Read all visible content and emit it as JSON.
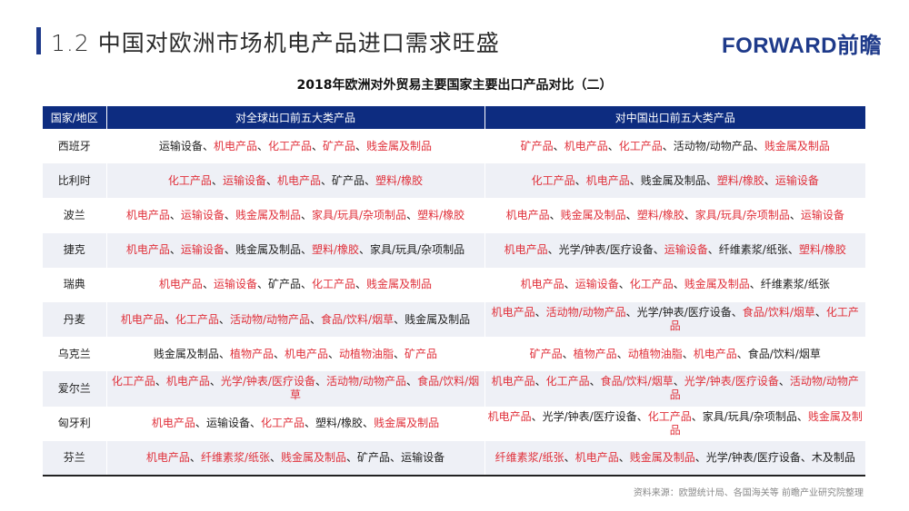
{
  "header": {
    "title": "1.2 中国对欧洲市场机电产品进口需求旺盛",
    "logo": "FORWARD前瞻"
  },
  "table": {
    "title": "2018年欧洲对外贸易主要国家主要出口产品对比（二）",
    "columns": [
      "国家/地区",
      "对全球出口前五大类产品",
      "对中国出口前五大类产品"
    ],
    "separator": "、",
    "highlight_color": "#e0303a",
    "header_color": "#0d2c80",
    "rows": [
      {
        "country": "西班牙",
        "global": [
          {
            "t": "运输设备",
            "r": false
          },
          {
            "t": "机电产品",
            "r": true
          },
          {
            "t": "化工产品",
            "r": true
          },
          {
            "t": "矿产品",
            "r": true
          },
          {
            "t": "贱金属及制品",
            "r": true
          }
        ],
        "china": [
          {
            "t": "矿产品",
            "r": true
          },
          {
            "t": "机电产品",
            "r": true
          },
          {
            "t": "化工产品",
            "r": true
          },
          {
            "t": "活动物/动物产品",
            "r": false
          },
          {
            "t": "贱金属及制品",
            "r": true
          }
        ]
      },
      {
        "country": "比利时",
        "global": [
          {
            "t": "化工产品",
            "r": true
          },
          {
            "t": "运输设备",
            "r": true
          },
          {
            "t": "机电产品",
            "r": true
          },
          {
            "t": "矿产品",
            "r": false
          },
          {
            "t": "塑料/橡胶",
            "r": true
          }
        ],
        "china": [
          {
            "t": "化工产品",
            "r": true
          },
          {
            "t": "机电产品",
            "r": true
          },
          {
            "t": "贱金属及制品",
            "r": false
          },
          {
            "t": "塑料/橡胶",
            "r": true
          },
          {
            "t": "运输设备",
            "r": true
          }
        ]
      },
      {
        "country": "波兰",
        "global": [
          {
            "t": "机电产品",
            "r": true
          },
          {
            "t": "运输设备",
            "r": true
          },
          {
            "t": "贱金属及制品",
            "r": true
          },
          {
            "t": "家具/玩具/杂项制品",
            "r": true
          },
          {
            "t": "塑料/橡胶",
            "r": true
          }
        ],
        "china": [
          {
            "t": "机电产品",
            "r": true
          },
          {
            "t": "贱金属及制品",
            "r": true
          },
          {
            "t": "塑料/橡胶",
            "r": true
          },
          {
            "t": "家具/玩具/杂项制品",
            "r": true
          },
          {
            "t": "运输设备",
            "r": true
          }
        ]
      },
      {
        "country": "捷克",
        "global": [
          {
            "t": "机电产品",
            "r": true
          },
          {
            "t": "运输设备",
            "r": true
          },
          {
            "t": "贱金属及制品",
            "r": false
          },
          {
            "t": "塑料/橡胶",
            "r": true
          },
          {
            "t": "家具/玩具/杂项制品",
            "r": false
          }
        ],
        "china": [
          {
            "t": "机电产品",
            "r": true
          },
          {
            "t": "光学/钟表/医疗设备",
            "r": false
          },
          {
            "t": "运输设备",
            "r": true
          },
          {
            "t": "纤维素浆/纸张",
            "r": false
          },
          {
            "t": "塑料/橡胶",
            "r": true
          }
        ]
      },
      {
        "country": "瑞典",
        "global": [
          {
            "t": "机电产品",
            "r": true
          },
          {
            "t": "运输设备",
            "r": true
          },
          {
            "t": "矿产品",
            "r": false
          },
          {
            "t": "化工产品",
            "r": true
          },
          {
            "t": "贱金属及制品",
            "r": true
          }
        ],
        "china": [
          {
            "t": "机电产品",
            "r": true
          },
          {
            "t": "运输设备",
            "r": true
          },
          {
            "t": "化工产品",
            "r": true
          },
          {
            "t": "贱金属及制品",
            "r": true
          },
          {
            "t": "纤维素浆/纸张",
            "r": false
          }
        ]
      },
      {
        "country": "丹麦",
        "global": [
          {
            "t": "机电产品",
            "r": true
          },
          {
            "t": "化工产品",
            "r": true
          },
          {
            "t": "活动物/动物产品",
            "r": true
          },
          {
            "t": "食品/饮料/烟草",
            "r": true
          },
          {
            "t": "贱金属及制品",
            "r": false
          }
        ],
        "china": [
          {
            "t": "机电产品",
            "r": true
          },
          {
            "t": "活动物/动物产品",
            "r": true
          },
          {
            "t": "光学/钟表/医疗设备",
            "r": false
          },
          {
            "t": "食品/饮料/烟草",
            "r": true
          },
          {
            "t": "化工产品",
            "r": true
          }
        ]
      },
      {
        "country": "乌克兰",
        "global": [
          {
            "t": "贱金属及制品",
            "r": false
          },
          {
            "t": "植物产品",
            "r": true
          },
          {
            "t": "机电产品",
            "r": true
          },
          {
            "t": "动植物油脂",
            "r": true
          },
          {
            "t": "矿产品",
            "r": true
          }
        ],
        "china": [
          {
            "t": "矿产品",
            "r": true
          },
          {
            "t": "植物产品",
            "r": true
          },
          {
            "t": "动植物油脂",
            "r": true
          },
          {
            "t": "机电产品",
            "r": true
          },
          {
            "t": "食品/饮料/烟草",
            "r": false
          }
        ]
      },
      {
        "country": "爱尔兰",
        "global": [
          {
            "t": "化工产品",
            "r": true
          },
          {
            "t": "机电产品",
            "r": true
          },
          {
            "t": "光学/钟表/医疗设备",
            "r": true
          },
          {
            "t": "活动物/动物产品",
            "r": true
          },
          {
            "t": "食品/饮料/烟草",
            "r": true
          }
        ],
        "china": [
          {
            "t": "机电产品",
            "r": true
          },
          {
            "t": "化工产品",
            "r": true
          },
          {
            "t": "食品/饮料/烟草",
            "r": true
          },
          {
            "t": "光学/钟表/医疗设备",
            "r": true
          },
          {
            "t": "活动物/动物产品",
            "r": true
          }
        ]
      },
      {
        "country": "匈牙利",
        "global": [
          {
            "t": "机电产品",
            "r": true
          },
          {
            "t": "运输设备",
            "r": false
          },
          {
            "t": "化工产品",
            "r": true
          },
          {
            "t": "塑料/橡胶",
            "r": false
          },
          {
            "t": "贱金属及制品",
            "r": true
          }
        ],
        "china": [
          {
            "t": "机电产品",
            "r": true
          },
          {
            "t": "光学/钟表/医疗设备",
            "r": false
          },
          {
            "t": "化工产品",
            "r": true
          },
          {
            "t": "家具/玩具/杂项制品",
            "r": false
          },
          {
            "t": "贱金属及制品",
            "r": true
          }
        ]
      },
      {
        "country": "芬兰",
        "global": [
          {
            "t": "机电产品",
            "r": true
          },
          {
            "t": "纤维素浆/纸张",
            "r": true
          },
          {
            "t": "贱金属及制品",
            "r": true
          },
          {
            "t": "矿产品",
            "r": false
          },
          {
            "t": "运输设备",
            "r": false
          }
        ],
        "china": [
          {
            "t": "纤维素浆/纸张",
            "r": true
          },
          {
            "t": "机电产品",
            "r": true
          },
          {
            "t": "贱金属及制品",
            "r": true
          },
          {
            "t": "光学/钟表/医疗设备",
            "r": false
          },
          {
            "t": "木及制品",
            "r": false
          }
        ]
      }
    ]
  },
  "source": "资料来源：欧盟统计局、各国海关等 前瞻产业研究院整理"
}
